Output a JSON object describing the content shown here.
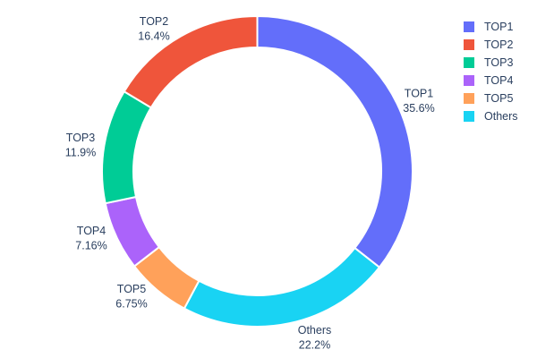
{
  "figure": {
    "background": "#ffffff",
    "text_color": "#2a3f5f",
    "slice_border_color": "#ffffff"
  },
  "chart_data": {
    "type": "pie",
    "subtype": "donut",
    "hole": 0.8,
    "direction": "clockwise",
    "rotation_start_deg": 0,
    "title": "",
    "legend_position": "right",
    "slices": [
      {
        "label": "TOP1",
        "value": 35.6,
        "percent_label": "35.6%",
        "color": "#636EFA"
      },
      {
        "label": "TOP2",
        "value": 16.4,
        "percent_label": "16.4%",
        "color": "#EF553B"
      },
      {
        "label": "TOP3",
        "value": 11.9,
        "percent_label": "11.9%",
        "color": "#00CC96"
      },
      {
        "label": "TOP4",
        "value": 7.16,
        "percent_label": "7.16%",
        "color": "#AB63FA"
      },
      {
        "label": "TOP5",
        "value": 6.75,
        "percent_label": "6.75%",
        "color": "#FFA15A"
      },
      {
        "label": "Others",
        "value": 22.2,
        "percent_label": "22.2%",
        "color": "#19D3F3"
      }
    ],
    "clockwise_display_order": [
      "TOP1",
      "Others",
      "TOP5",
      "TOP4",
      "TOP3",
      "TOP2"
    ]
  },
  "legend": {
    "entries": [
      "TOP1",
      "TOP2",
      "TOP3",
      "TOP4",
      "TOP5",
      "Others"
    ]
  }
}
